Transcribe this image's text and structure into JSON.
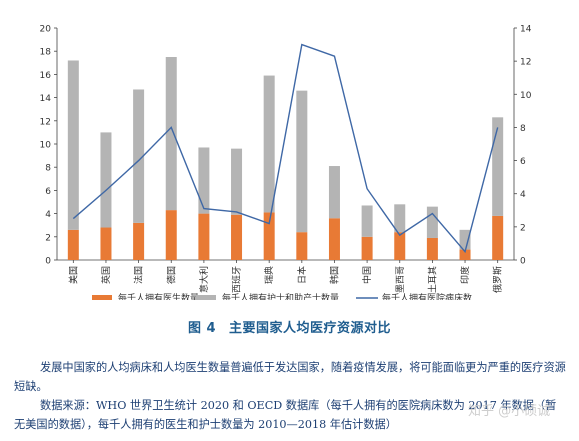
{
  "chart_data": {
    "type": "bar",
    "stacked": true,
    "categories": [
      "美国",
      "英国",
      "法国",
      "德国",
      "意大利",
      "西班牙",
      "瑞典",
      "日本",
      "韩国",
      "中国",
      "墨西哥",
      "土耳其",
      "印度",
      "俄罗斯"
    ],
    "series": [
      {
        "name": "每千人拥有医生数量",
        "kind": "bar",
        "axis": "left",
        "color": "#e87a35",
        "values": [
          2.6,
          2.8,
          3.2,
          4.3,
          4.0,
          3.9,
          4.1,
          2.4,
          3.6,
          2.0,
          2.4,
          1.9,
          0.9,
          3.8
        ]
      },
      {
        "name": "每千人拥有护士和助产士数量",
        "kind": "bar",
        "axis": "left",
        "color": "#b4b4b4",
        "values": [
          14.6,
          8.2,
          11.5,
          13.2,
          5.7,
          5.7,
          11.8,
          12.2,
          4.5,
          2.7,
          2.4,
          2.7,
          1.7,
          8.5
        ]
      },
      {
        "name": "每千人拥有医院病床数",
        "kind": "line",
        "axis": "right",
        "color": "#3f68a6",
        "values": [
          2.5,
          4.2,
          6.0,
          8.0,
          3.1,
          2.9,
          2.2,
          13.0,
          12.3,
          4.3,
          1.5,
          2.8,
          0.5,
          8.0
        ]
      }
    ],
    "ylim_left": [
      0,
      20
    ],
    "yticks_left": [
      0,
      2,
      4,
      6,
      8,
      10,
      12,
      14,
      16,
      18,
      20
    ],
    "ylim_right": [
      0,
      14
    ],
    "yticks_right": [
      0,
      2,
      4,
      6,
      8,
      10,
      12,
      14
    ],
    "grid": false,
    "legend": "bottom"
  },
  "figure": {
    "label": "图 4",
    "title": "主要国家人均医疗资源对比"
  },
  "text": {
    "paragraph1": "发展中国家的人均病床和人均医生数量普遍低于发达国家，随着疫情发展，将可能面临更为严重的医疗资源短缺。",
    "paragraph2": "数据来源：WHO 世界卫生统计 2020 和 OECD 数据库（每千人拥有的医院病床数为 2017 年数据（暂无美国的数据），每千人拥有的医生和护士数量为 2010—2018 年估计数据）"
  },
  "watermark": "知乎 @小硕诚"
}
